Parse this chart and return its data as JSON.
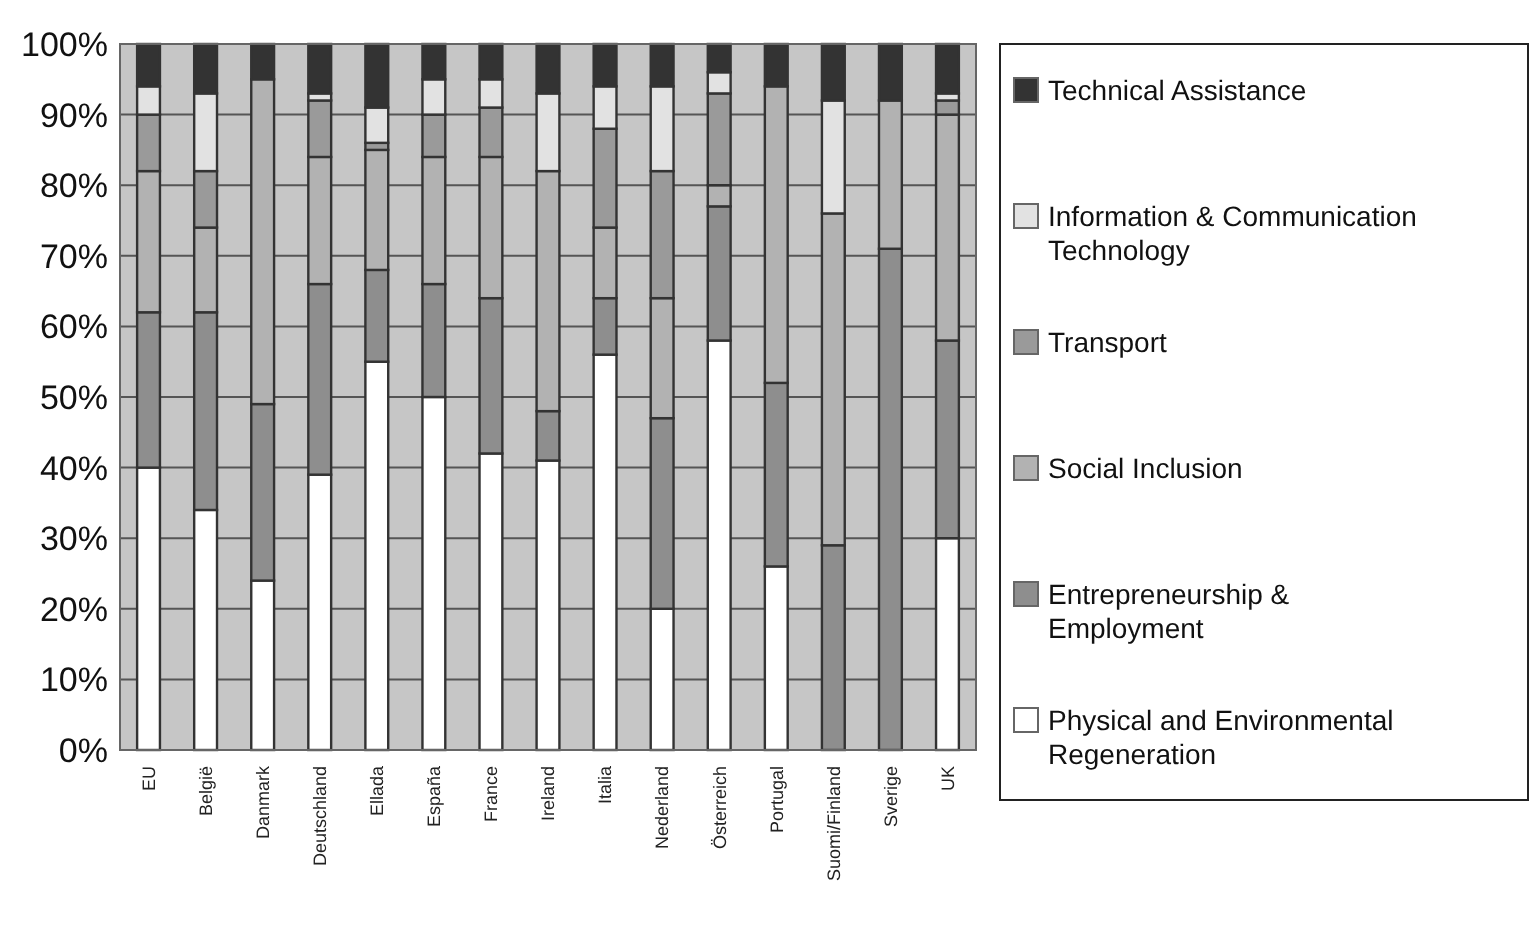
{
  "chart_data": {
    "type": "bar",
    "stacked": true,
    "categories": [
      "EU",
      "België",
      "Danmark",
      "Deutschland",
      "Ellada",
      "España",
      "France",
      "Ireland",
      "Italia",
      "Nederland",
      "Österreich",
      "Portugal",
      "Suomi/Finland",
      "Sverige",
      "UK"
    ],
    "series": [
      {
        "name": "Physical and Environmental Regeneration",
        "color": "#ffffff",
        "values": [
          40,
          34,
          24,
          39,
          55,
          50,
          42,
          41,
          56,
          20,
          58,
          26,
          0,
          0,
          30
        ]
      },
      {
        "name": "Entrepreneurship & Employment",
        "color": "#8e8e8e",
        "values": [
          22,
          28,
          25,
          27,
          13,
          16,
          22,
          7,
          8,
          27,
          19,
          26,
          29,
          71,
          28
        ]
      },
      {
        "name": "Social Inclusion",
        "color": "#b2b2b2",
        "values": [
          20,
          12,
          46,
          18,
          17,
          18,
          20,
          34,
          10,
          17,
          3,
          42,
          47,
          21,
          32
        ]
      },
      {
        "name": "Transport",
        "color": "#9a9a9a",
        "values": [
          8,
          8,
          0,
          8,
          1,
          6,
          7,
          0,
          14,
          18,
          13,
          0,
          0,
          0,
          2
        ]
      },
      {
        "name": "Information & Communication Technology",
        "color": "#e2e2e2",
        "values": [
          4,
          11,
          0,
          1,
          5,
          5,
          4,
          11,
          6,
          12,
          3,
          0,
          16,
          0,
          1
        ]
      },
      {
        "name": "Technical Assistance",
        "color": "#333333",
        "values": [
          6,
          7,
          5,
          7,
          9,
          5,
          5,
          7,
          6,
          6,
          4,
          6,
          8,
          8,
          7
        ]
      }
    ],
    "ylim": [
      0,
      100
    ],
    "yticks": [
      {
        "value": 0,
        "label": "0%"
      },
      {
        "value": 10,
        "label": "10%"
      },
      {
        "value": 20,
        "label": "20%"
      },
      {
        "value": 30,
        "label": "30%"
      },
      {
        "value": 40,
        "label": "40%"
      },
      {
        "value": 50,
        "label": "50%"
      },
      {
        "value": 60,
        "label": "60%"
      },
      {
        "value": 70,
        "label": "70%"
      },
      {
        "value": 80,
        "label": "80%"
      },
      {
        "value": 90,
        "label": "90%"
      },
      {
        "value": 100,
        "label": "100%"
      }
    ],
    "grid": "y",
    "legend": "right"
  }
}
